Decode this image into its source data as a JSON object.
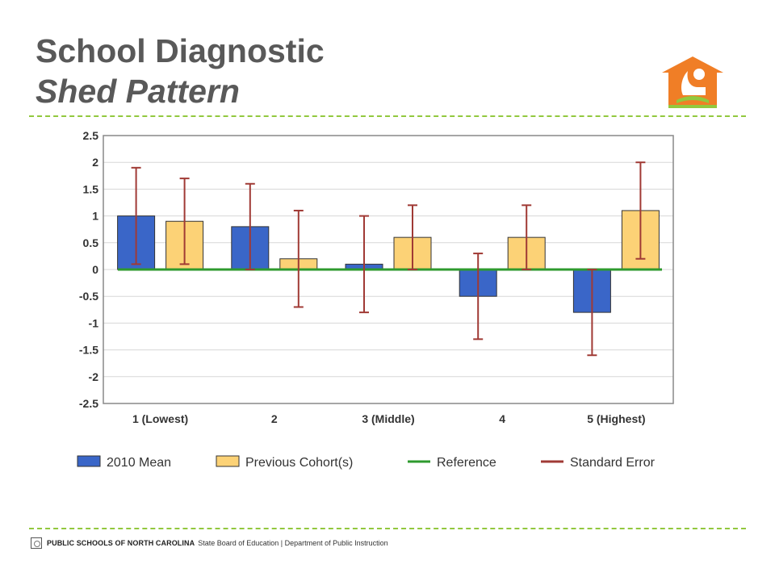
{
  "slide": {
    "title": "School Diagnostic",
    "subtitle": "Shed Pattern",
    "accent_color": "#92c83e",
    "logo_icon": "house-reader-logo-icon",
    "logo_color": "#f07e26"
  },
  "footer": {
    "org": "PUBLIC SCHOOLS OF NORTH CAROLINA",
    "rest": "State Board of Education | Department of Public Instruction",
    "seal_icon": "seal-icon"
  },
  "chart_data": {
    "type": "bar",
    "title": "",
    "xlabel": "",
    "ylabel": "",
    "categories": [
      "1 (Lowest)",
      "2",
      "3 (Middle)",
      "4",
      "5 (Highest)"
    ],
    "ylim": [
      -2.5,
      2.5
    ],
    "yticks": [
      "2.5",
      "2",
      "1.5",
      "1",
      "0.5",
      "0",
      "-0.5",
      "-1",
      "-1.5",
      "-2",
      "-2.5"
    ],
    "yticks_values": [
      2.5,
      2,
      1.5,
      1,
      0.5,
      0,
      -0.5,
      -1,
      -1.5,
      -2,
      -2.5
    ],
    "grid": true,
    "legend_position": "bottom",
    "series": [
      {
        "name": "2010 Mean",
        "color": "#3a66c8",
        "values": [
          1.0,
          0.8,
          0.1,
          -0.5,
          -0.8
        ],
        "error_low": [
          0.1,
          0.0,
          -0.8,
          -1.3,
          -1.6
        ],
        "error_high": [
          1.9,
          1.6,
          1.0,
          0.3,
          0.0
        ]
      },
      {
        "name": "Previous Cohort(s)",
        "color": "#fcd276",
        "values": [
          0.9,
          0.2,
          0.6,
          0.6,
          1.1
        ],
        "error_low": [
          0.1,
          -0.7,
          0.0,
          0.0,
          0.2
        ],
        "error_high": [
          1.7,
          1.1,
          1.2,
          1.2,
          2.0
        ]
      }
    ],
    "reference": {
      "name": "Reference",
      "value": 0,
      "color": "#2e9a2e"
    },
    "error_bars": {
      "name": "Standard Error",
      "color": "#a03a35"
    },
    "legend": [
      "2010 Mean",
      "Previous Cohort(s)",
      "Reference",
      "Standard Error"
    ]
  }
}
